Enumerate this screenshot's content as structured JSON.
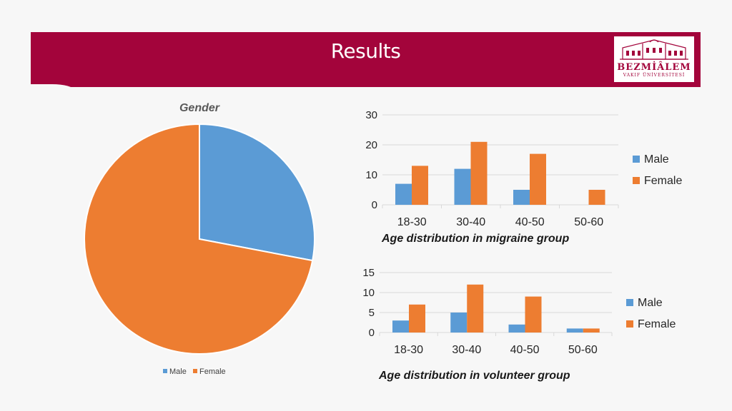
{
  "header": {
    "title": "Results",
    "logo_text": "BEZMİÂLEM",
    "logo_subtext": "VAKIF ÜNİVERSİTESİ"
  },
  "colors": {
    "banner": "#a3043b",
    "male": "#5b9bd5",
    "female": "#ed7d31"
  },
  "chart_data": [
    {
      "type": "pie",
      "title": "Gender",
      "labels": [
        "Male",
        "Female"
      ],
      "values": [
        28,
        72
      ],
      "legend": {
        "position": "bottom",
        "entries": [
          "Male",
          "Female"
        ]
      }
    },
    {
      "type": "bar",
      "title": "Age distribution in migraine group",
      "categories": [
        "18-30",
        "30-40",
        "40-50",
        "50-60"
      ],
      "series": [
        {
          "name": "Male",
          "values": [
            7,
            12,
            5,
            0
          ]
        },
        {
          "name": "Female",
          "values": [
            13,
            21,
            17,
            5
          ]
        }
      ],
      "ylim": [
        0,
        30
      ],
      "yticks": [
        "0",
        "10",
        "20",
        "30"
      ],
      "grid": true,
      "legend": {
        "position": "right",
        "entries": [
          "Male",
          "Female"
        ]
      }
    },
    {
      "type": "bar",
      "title": "Age distribution in volunteer group",
      "categories": [
        "18-30",
        "30-40",
        "40-50",
        "50-60"
      ],
      "series": [
        {
          "name": "Male",
          "values": [
            3,
            5,
            2,
            1
          ]
        },
        {
          "name": "Female",
          "values": [
            7,
            12,
            9,
            1
          ]
        }
      ],
      "ylim": [
        0,
        15
      ],
      "yticks": [
        "0",
        "5",
        "10",
        "15"
      ],
      "grid": true,
      "legend": {
        "position": "right",
        "entries": [
          "Male",
          "Female"
        ]
      }
    }
  ]
}
